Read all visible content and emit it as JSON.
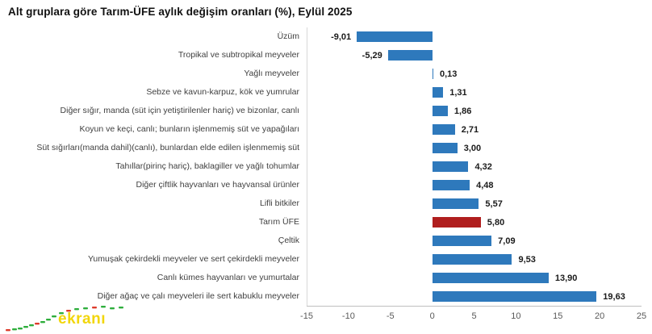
{
  "title": "Alt gruplara göre Tarım-ÜFE aylık değişim oranları (%), Eylül 2025",
  "colors": {
    "bar": "#2E79BC",
    "highlight": "#B01E1E",
    "axis_line": "#BFBFBF",
    "grid_line": "#D9D9D9",
    "category_label": "#404040",
    "value_label": "#1A1A1A",
    "tick_label": "#595959",
    "watermark_text": "#F2D60B",
    "watermark_green": "#2EAE3C",
    "watermark_red": "#DD3B2B"
  },
  "watermark": {
    "text": "ekranı"
  },
  "chart_data": {
    "type": "bar",
    "orientation": "horizontal",
    "title": "Alt gruplara göre Tarım-ÜFE aylık değişim oranları (%), Eylül 2025",
    "xlabel": "",
    "ylabel": "",
    "xlim": [
      -15,
      25
    ],
    "xticks": [
      -15,
      -10,
      -5,
      0,
      5,
      10,
      15,
      20,
      25
    ],
    "grid": false,
    "legend": false,
    "decimal_separator": ",",
    "categories": [
      "Üzüm",
      "Tropikal ve subtropikal meyveler",
      "Yağlı meyveler",
      "Sebze ve kavun-karpuz, kök ve yumrular",
      "Diğer sığır, manda (süt için yetiştirilenler hariç) ve bizonlar, canlı",
      "Koyun ve keçi, canlı; bunların işlenmemiş süt ve yapağıları",
      "Süt sığırları(manda dahil)(canlı), bunlardan elde edilen işlenmemiş süt",
      "Tahıllar(pirinç hariç), baklagiller ve yağlı tohumlar",
      "Diğer çiftlik hayvanları ve hayvansal ürünler",
      "Lifli bitkiler",
      "Tarım ÜFE",
      "Çeltik",
      "Yumuşak çekirdekli meyveler ve sert çekirdekli meyveler",
      "Canlı kümes hayvanları ve yumurtalar",
      "Diğer ağaç ve çalı meyveleri ile sert kabuklu meyveler"
    ],
    "values": [
      -9.01,
      -5.29,
      0.13,
      1.31,
      1.86,
      2.71,
      3.0,
      4.32,
      4.48,
      5.57,
      5.8,
      7.09,
      9.53,
      13.9,
      19.63
    ],
    "value_labels": [
      "-9,01",
      "-5,29",
      "0,13",
      "1,31",
      "1,86",
      "2,71",
      "3,00",
      "4,32",
      "4,48",
      "5,57",
      "5,80",
      "7,09",
      "9,53",
      "13,90",
      "19,63"
    ],
    "highlight_index": 10,
    "highlight_category": "Tarım ÜFE"
  }
}
